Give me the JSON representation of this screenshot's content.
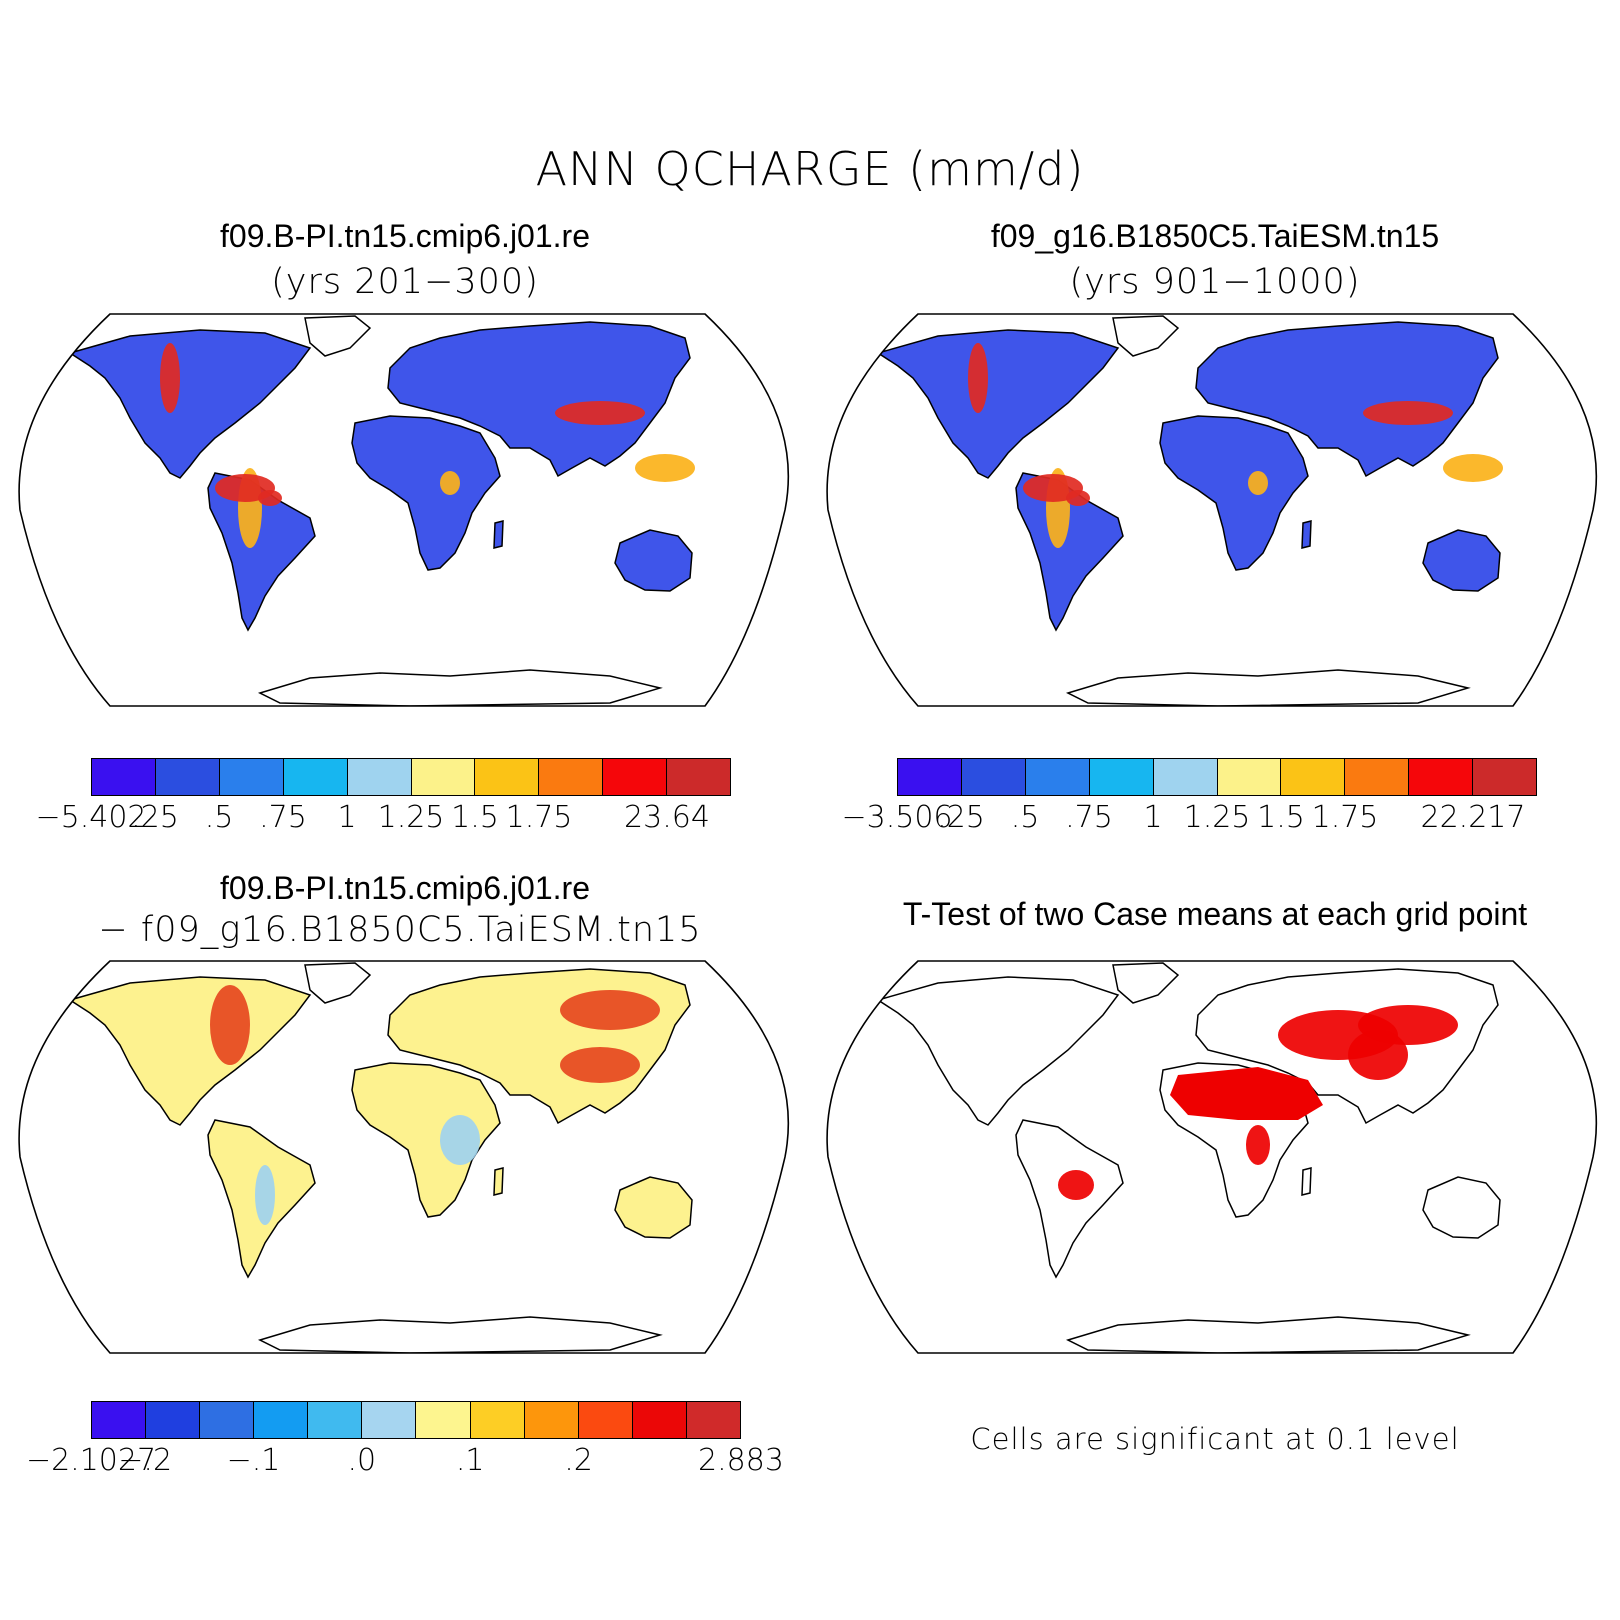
{
  "title": "ANN QCHARGE (mm/d)",
  "panels": [
    {
      "title": "f09.B-PI.tn15.cmip6.j01.re",
      "subtitle": "(yrs 201−300)",
      "colorbar": {
        "colors": [
          "#3a10f0",
          "#2b4ee0",
          "#2a7fec",
          "#17b6f0",
          "#9fd3ef",
          "#fcf28a",
          "#fbc316",
          "#fa7a10",
          "#f5060a",
          "#cc2a2a"
        ],
        "labels": [
          "−5.402",
          ".25",
          ".5",
          ".75",
          "1",
          "1.25",
          "1.5",
          "1.75",
          "",
          "23.64"
        ]
      }
    },
    {
      "title": "f09_g16.B1850C5.TaiESM.tn15",
      "subtitle": "(yrs 901−1000)",
      "colorbar": {
        "colors": [
          "#3a10f0",
          "#2b4ee0",
          "#2a7fec",
          "#17b6f0",
          "#9fd3ef",
          "#fcf28a",
          "#fbc316",
          "#fa7a10",
          "#f5060a",
          "#cc2a2a"
        ],
        "labels": [
          "−3.506",
          ".25",
          ".5",
          ".75",
          "1",
          "1.25",
          "1.5",
          "1.75",
          "",
          "22.217"
        ]
      }
    },
    {
      "title": "f09.B-PI.tn15.cmip6.j01.re",
      "subtitle": "− f09_g16.B1850C5.TaiESM.tn15",
      "colorbar": {
        "colors": [
          "#3a10f0",
          "#1f3fe0",
          "#2e6fe3",
          "#139cf2",
          "#40baef",
          "#a6d5f0",
          "#fdf58f",
          "#fdce25",
          "#fd960c",
          "#fb4a10",
          "#eb0707",
          "#d02a2a"
        ],
        "labels": [
          "−2.1027",
          "−.2",
          "",
          "−.1",
          "",
          ".0",
          "",
          ".1",
          "",
          ".2",
          "",
          "",
          "2.883"
        ]
      }
    },
    {
      "title": "T-Test of two Case means at each grid point",
      "note": "Cells are significant at 0.1 level"
    }
  ]
}
